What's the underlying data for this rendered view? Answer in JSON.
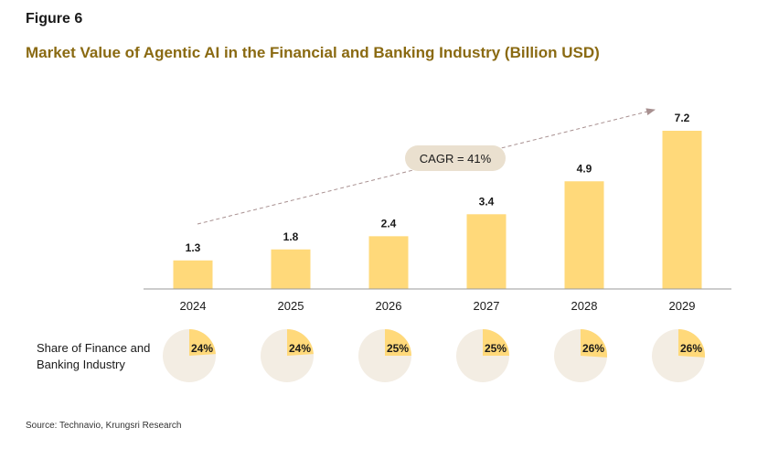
{
  "figure_label": "Figure 6",
  "title": "Market Value of Agentic AI in the Financial and Banking Industry (Billion USD)",
  "share_label_line1": "Share of Finance and",
  "share_label_line2": "Banking Industry",
  "source": "Source: Technavio, Krungsri Research",
  "colors": {
    "bar": "#FFD97A",
    "pie_bg": "#F3EDE3",
    "pie_fill": "#FFD97A",
    "title": "#8a6a12",
    "cagr_bg": "#EAE0CF",
    "arrow": "#A89090"
  },
  "chart_data": {
    "type": "bar",
    "title": "Market Value of Agentic AI in the Financial and Banking Industry (Billion USD)",
    "categories": [
      "2024",
      "2025",
      "2026",
      "2027",
      "2028",
      "2029"
    ],
    "values": [
      1.3,
      1.8,
      2.4,
      3.4,
      4.9,
      7.2
    ],
    "value_labels": [
      "1.3",
      "1.8",
      "2.4",
      "3.4",
      "4.9",
      "7.2"
    ],
    "ylim": [
      0,
      7.2
    ],
    "annotation": "CAGR = 41%",
    "share_values": [
      24,
      24,
      25,
      25,
      26,
      26
    ],
    "share_labels": [
      "24%",
      "24%",
      "25%",
      "25%",
      "26%",
      "26%"
    ]
  }
}
